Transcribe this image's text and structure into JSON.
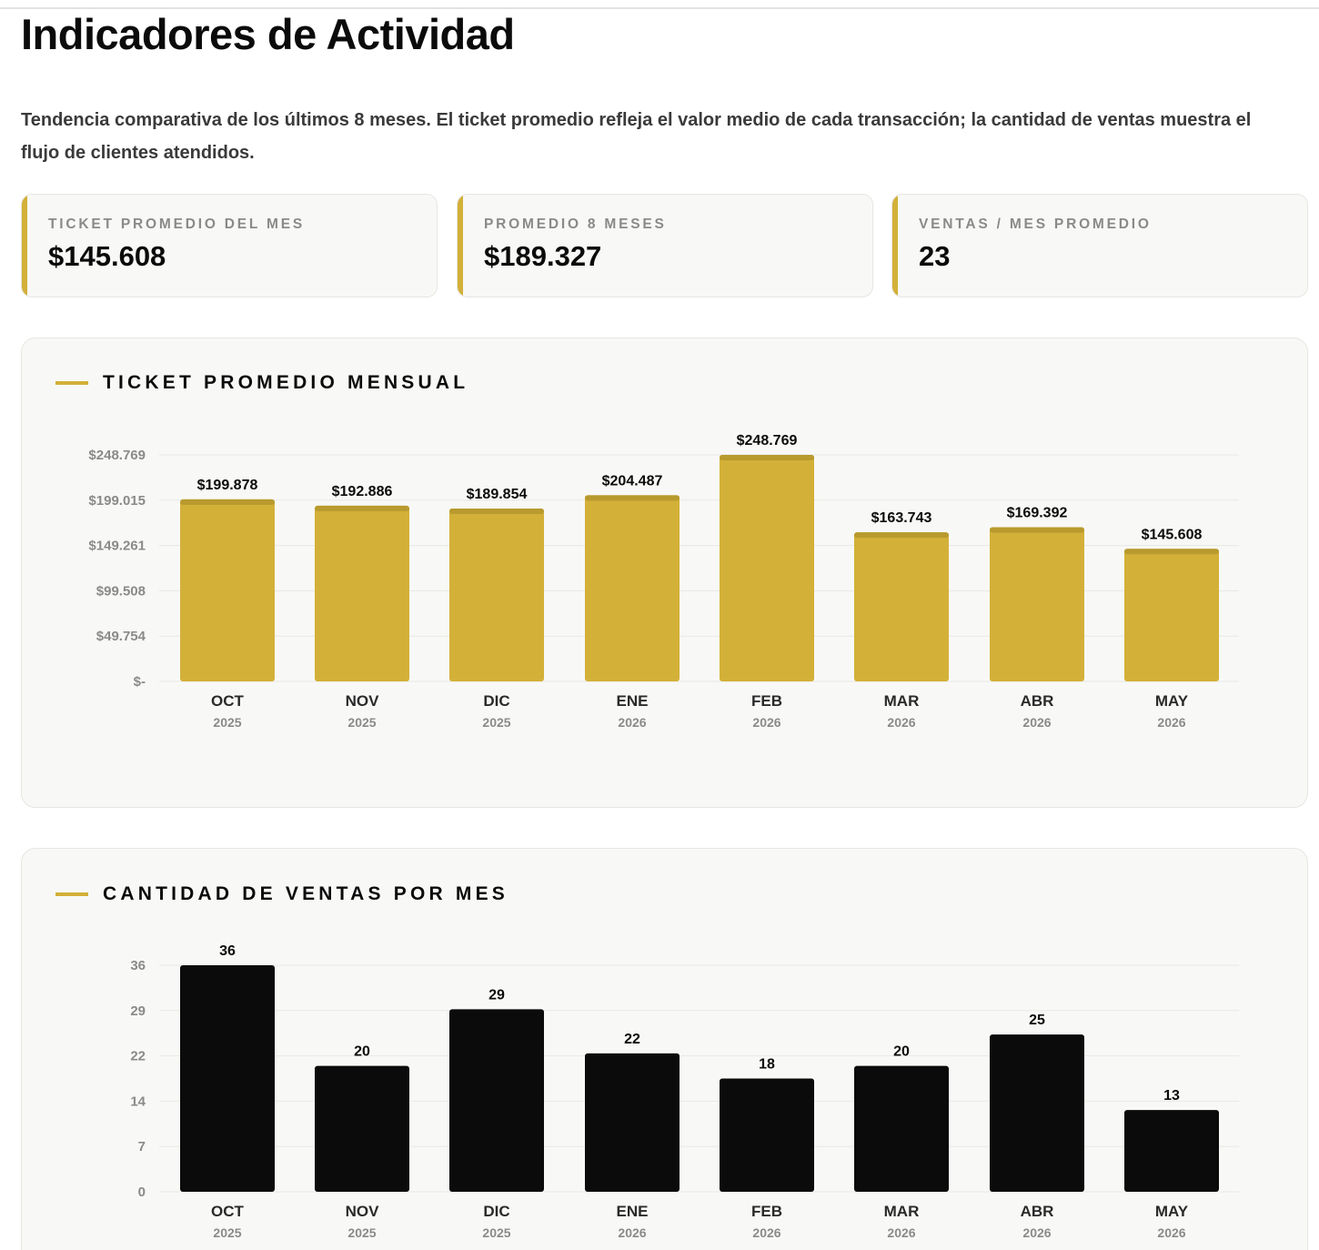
{
  "page": {
    "title": "Indicadores de Actividad",
    "intro": "Tendencia comparativa de los últimos 8 meses. El ticket promedio refleja el valor medio de cada transacción; la cantidad de ventas muestra el flujo de clientes atendidos."
  },
  "kpis": [
    {
      "label": "Ticket promedio del mes",
      "value": "$145.608"
    },
    {
      "label": "Promedio 8 meses",
      "value": "$189.327"
    },
    {
      "label": "Ventas / mes promedio",
      "value": "23"
    }
  ],
  "colors": {
    "accent": "#d3b038",
    "accent_dark": "#b89a2e",
    "bar_dark": "#0b0b0b",
    "card_bg": "#f8f8f6",
    "grid": "#e8e8e4"
  },
  "chart_data": [
    {
      "type": "bar",
      "title": "TICKET PROMEDIO MENSUAL",
      "categories": [
        "OCT",
        "NOV",
        "DIC",
        "ENE",
        "FEB",
        "MAR",
        "ABR",
        "MAY"
      ],
      "category_years": [
        "2025",
        "2025",
        "2025",
        "2026",
        "2026",
        "2026",
        "2026",
        "2026"
      ],
      "values": [
        199878,
        192886,
        189854,
        204487,
        248769,
        163743,
        169392,
        145608
      ],
      "value_labels": [
        "$199.878",
        "$192.886",
        "$189.854",
        "$204.487",
        "$248.769",
        "$163.743",
        "$169.392",
        "$145.608"
      ],
      "yticks": [
        0,
        49754,
        99508,
        149261,
        199015,
        248769
      ],
      "ytick_labels": [
        "$-",
        "$49.754",
        "$99.508",
        "$149.261",
        "$199.015",
        "$248.769"
      ],
      "ylim": [
        0,
        248769
      ],
      "grid": true,
      "bar_color": "#d3b038"
    },
    {
      "type": "bar",
      "title": "CANTIDAD DE VENTAS POR MES",
      "categories": [
        "OCT",
        "NOV",
        "DIC",
        "ENE",
        "FEB",
        "MAR",
        "ABR",
        "MAY"
      ],
      "category_years": [
        "2025",
        "2025",
        "2025",
        "2026",
        "2026",
        "2026",
        "2026",
        "2026"
      ],
      "values": [
        36,
        20,
        29,
        22,
        18,
        20,
        25,
        13
      ],
      "value_labels": [
        "36",
        "20",
        "29",
        "22",
        "18",
        "20",
        "25",
        "13"
      ],
      "yticks": [
        0,
        7.2,
        14.4,
        21.6,
        28.8,
        36
      ],
      "ytick_labels": [
        "0",
        "7",
        "14",
        "22",
        "29",
        "36"
      ],
      "ylim": [
        0,
        36
      ],
      "grid": true,
      "bar_color": "#0b0b0b"
    }
  ]
}
